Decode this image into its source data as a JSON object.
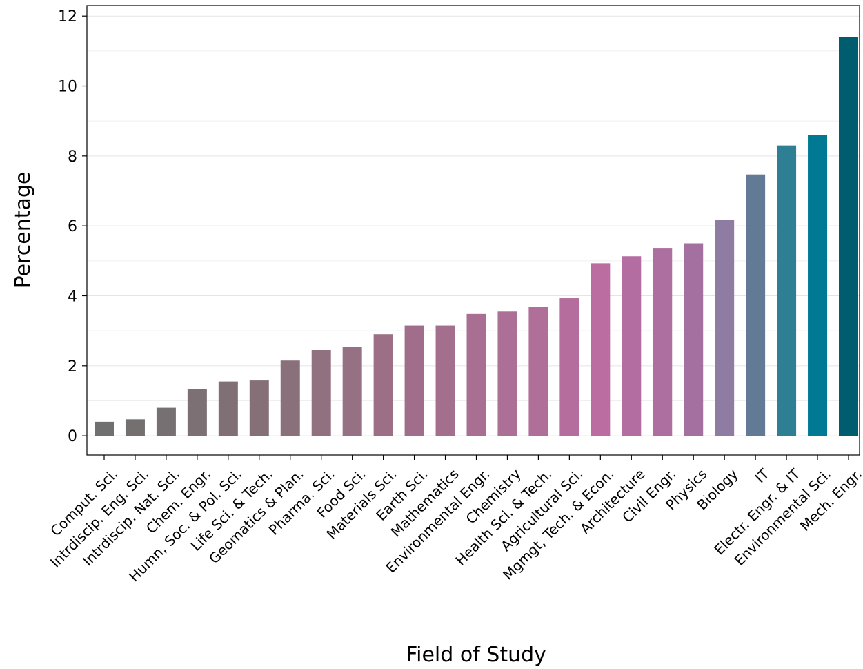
{
  "chart_data": {
    "type": "bar",
    "title": "",
    "xlabel": "Field of Study",
    "ylabel": "Percentage",
    "ylim": [
      -0.55,
      12.3
    ],
    "yticks": [
      0,
      2,
      4,
      6,
      8,
      10,
      12
    ],
    "grid": true,
    "categories": [
      "Comput. Sci.",
      "Intrdiscip. Eng. Sci.",
      "Intrdiscip. Nat. Sci.",
      "Chem. Engr.",
      "Humn, Soc. & Pol. Sci.",
      "Life Sci. & Tech.",
      "Geomatics & Plan.",
      "Pharma. Sci.",
      "Food Sci.",
      "Materials Sci.",
      "Earth Sci.",
      "Mathematics",
      "Environmental Engr.",
      "Chemistry",
      "Health Sci. & Tech.",
      "Agricultural Sci.",
      "Mgmgt, Tech. & Econ.",
      "Architecture",
      "Civil Engr.",
      "Physics",
      "Biology",
      "IT",
      "Electr. Engr. & IT",
      "Environmental Sci.",
      "Mech. Engr."
    ],
    "values": [
      0.4,
      0.47,
      0.8,
      1.33,
      1.55,
      1.58,
      2.15,
      2.45,
      2.53,
      2.9,
      3.15,
      3.15,
      3.48,
      3.55,
      3.68,
      3.93,
      4.93,
      5.13,
      5.37,
      5.5,
      6.17,
      7.47,
      8.3,
      8.6,
      11.4
    ],
    "colors": [
      "#707070",
      "#747070",
      "#777072",
      "#7c7074",
      "#807076",
      "#857078",
      "#8a707a",
      "#917180",
      "#967183",
      "#9c6f87",
      "#a06e8a",
      "#a46e8d",
      "#a86f92",
      "#ac6f96",
      "#b06f99",
      "#b46d9c",
      "#bb6ca1",
      "#b46da0",
      "#ad6fa0",
      "#a370a0",
      "#8e7ca3",
      "#637a97",
      "#2e7f93",
      "#007a94",
      "#005d70"
    ]
  }
}
